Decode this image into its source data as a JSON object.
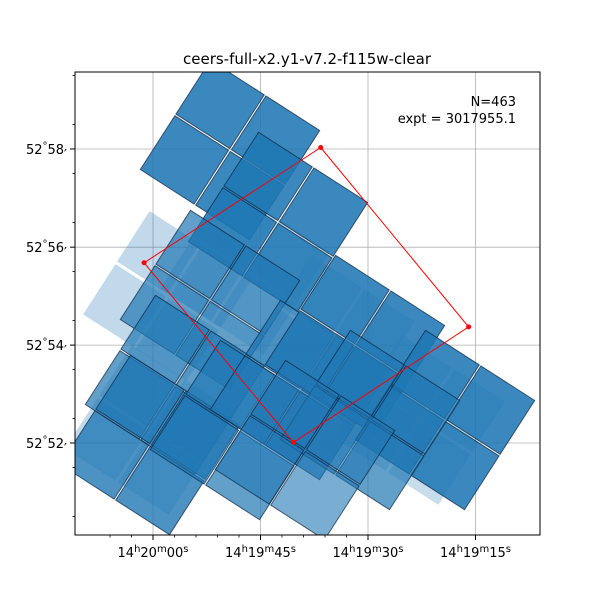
{
  "chart_data": {
    "type": "footprint",
    "title": "ceers-full-x2.y1-v7.2-f115w-clear",
    "annotation": {
      "line1": "N=463",
      "line2": "expt = 3017955.1"
    },
    "x_axis": {
      "unit": "deg",
      "ticks": [
        {
          "value": 215.0,
          "label": "14h20m00s",
          "h": "14",
          "m": "20",
          "s": "00"
        },
        {
          "value": 214.9375,
          "label": "14h19m45s",
          "h": "14",
          "m": "19",
          "s": "45"
        },
        {
          "value": 214.875,
          "label": "14h19m30s",
          "h": "14",
          "m": "19",
          "s": "30"
        },
        {
          "value": 214.8125,
          "label": "14h19m15s",
          "h": "14",
          "m": "19",
          "s": "15"
        }
      ],
      "range": [
        215.042,
        214.775
      ]
    },
    "y_axis": {
      "unit": "deg",
      "ticks": [
        {
          "value": 52.8667,
          "label": "52°52′",
          "deg": "52",
          "min": "52"
        },
        {
          "value": 52.9,
          "label": "52°54′",
          "deg": "52",
          "min": "54"
        },
        {
          "value": 52.9333,
          "label": "52°56′",
          "deg": "52",
          "min": "56"
        },
        {
          "value": 52.9667,
          "label": "52°58′",
          "deg": "52",
          "min": "58"
        }
      ],
      "range": [
        52.836,
        52.993
      ]
    },
    "grid": true,
    "series_color": "#1f77b4",
    "outline_color": "#ff0000",
    "outline_ra_dec": [
      [
        214.9025,
        52.9672
      ],
      [
        214.8165,
        52.9062
      ],
      [
        214.9183,
        52.8669
      ],
      [
        215.0052,
        52.928
      ]
    ]
  }
}
